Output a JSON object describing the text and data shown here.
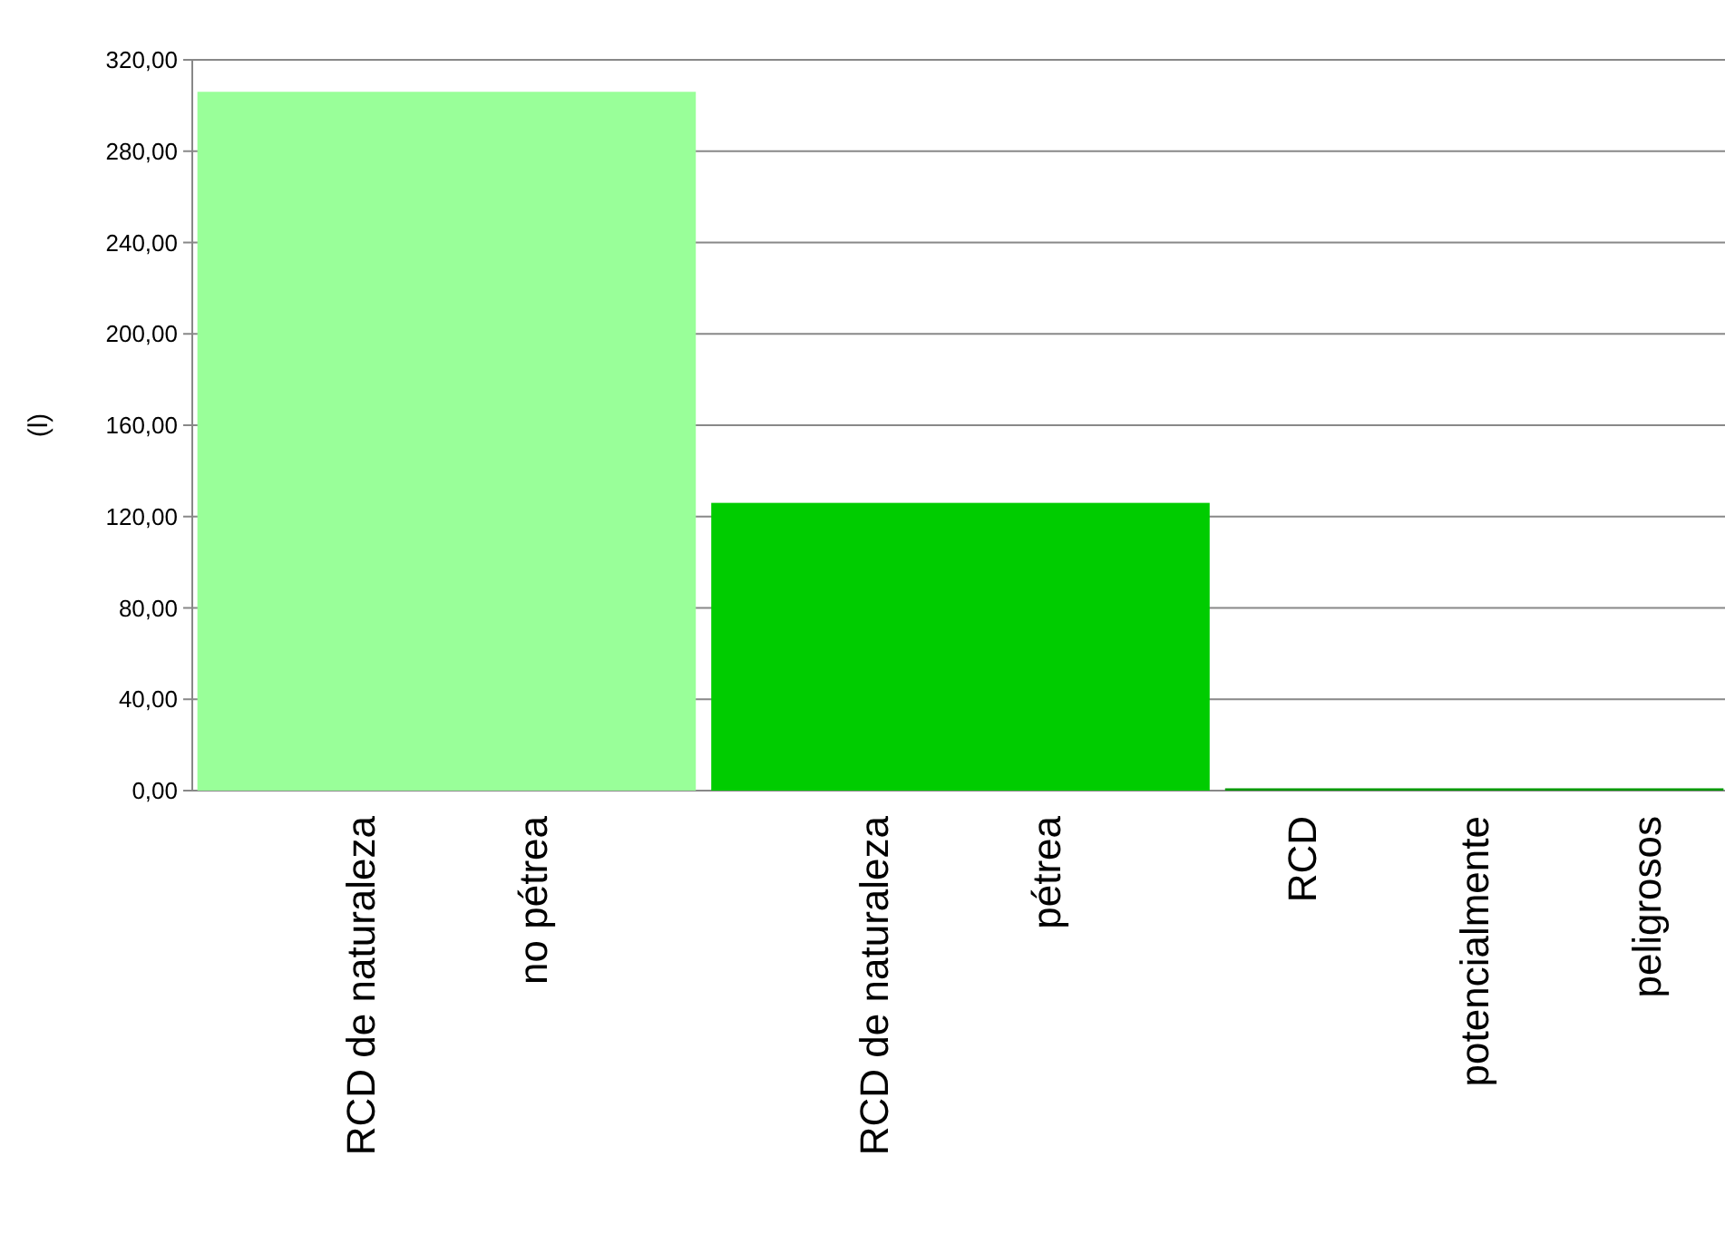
{
  "chart_data": {
    "type": "bar",
    "ylabel": "(l)",
    "categories": [
      "RCD de naturaleza\nno pétrea",
      "RCD de naturaleza\npétrea",
      "RCD\npotencialmente\npeligrosos"
    ],
    "values": [
      306,
      126,
      1
    ],
    "colors": [
      "#99ff99",
      "#00cc00",
      "#009900"
    ],
    "ylim": [
      0,
      320
    ],
    "yticks": [
      {
        "value": 0,
        "label": "0,00"
      },
      {
        "value": 40,
        "label": "40,00"
      },
      {
        "value": 80,
        "label": "80,00"
      },
      {
        "value": 120,
        "label": "120,00"
      },
      {
        "value": 160,
        "label": "160,00"
      },
      {
        "value": 200,
        "label": "200,00"
      },
      {
        "value": 240,
        "label": "240,00"
      },
      {
        "value": 280,
        "label": "280,00"
      },
      {
        "value": 320,
        "label": "320,00"
      }
    ],
    "grid": "y"
  }
}
